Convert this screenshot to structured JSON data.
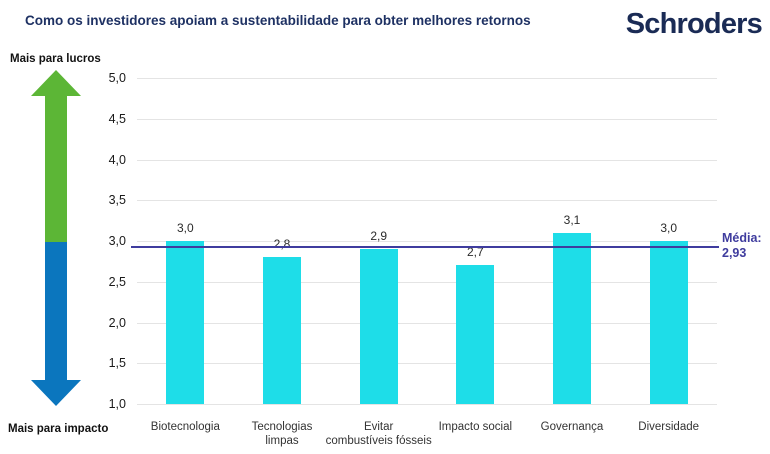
{
  "header": {
    "title": "Como os investidores apoiam a sustentabilidade para obter melhores retornos",
    "logo_text": "Schroders"
  },
  "axis_annotations": {
    "top_label": "Mais para lucros",
    "bottom_label": "Mais para impacto"
  },
  "mean_line": {
    "label_title": "Média:",
    "label_value": "2,93",
    "value": 2.93
  },
  "colors": {
    "title_navy": "#1e3163",
    "logo_navy": "#1a2b55",
    "bar_cyan": "#1edde8",
    "arrow_green": "#5cb636",
    "arrow_blue": "#0b76be",
    "mean_purple": "#3f3c9e",
    "gridline_gray": "#e4e4e4"
  },
  "chart_data": {
    "type": "bar",
    "title": "Como os investidores apoiam a sustentabilidade para obter melhores retornos",
    "categories": [
      "Biotecnologia",
      "Tecnologias limpas",
      "Evitar combustíveis fósseis",
      "Impacto social",
      "Governança",
      "Diversidade"
    ],
    "categories_wrapped": [
      [
        "Biotecnologia"
      ],
      [
        "Tecnologias",
        "limpas"
      ],
      [
        "Evitar",
        "combustíveis fósseis"
      ],
      [
        "Impacto social"
      ],
      [
        "Governança"
      ],
      [
        "Diversidade"
      ]
    ],
    "values": [
      3.0,
      2.8,
      2.9,
      2.7,
      3.1,
      3.0
    ],
    "value_labels": [
      "3,0",
      "2,8",
      "2,9",
      "2,7",
      "3,1",
      "3,0"
    ],
    "xlabel": "",
    "ylabel": "",
    "ylim": [
      1.0,
      5.0
    ],
    "ytick_step": 0.5,
    "ytick_labels": [
      "5,0",
      "4,5",
      "4,0",
      "3,5",
      "3,0",
      "2,5",
      "2,0",
      "1,5",
      "1,0"
    ],
    "mean": 2.93,
    "grid": true,
    "legend": "none",
    "annotations": {
      "y_axis_top_meaning": "Mais para lucros",
      "y_axis_bottom_meaning": "Mais para impacto"
    }
  }
}
